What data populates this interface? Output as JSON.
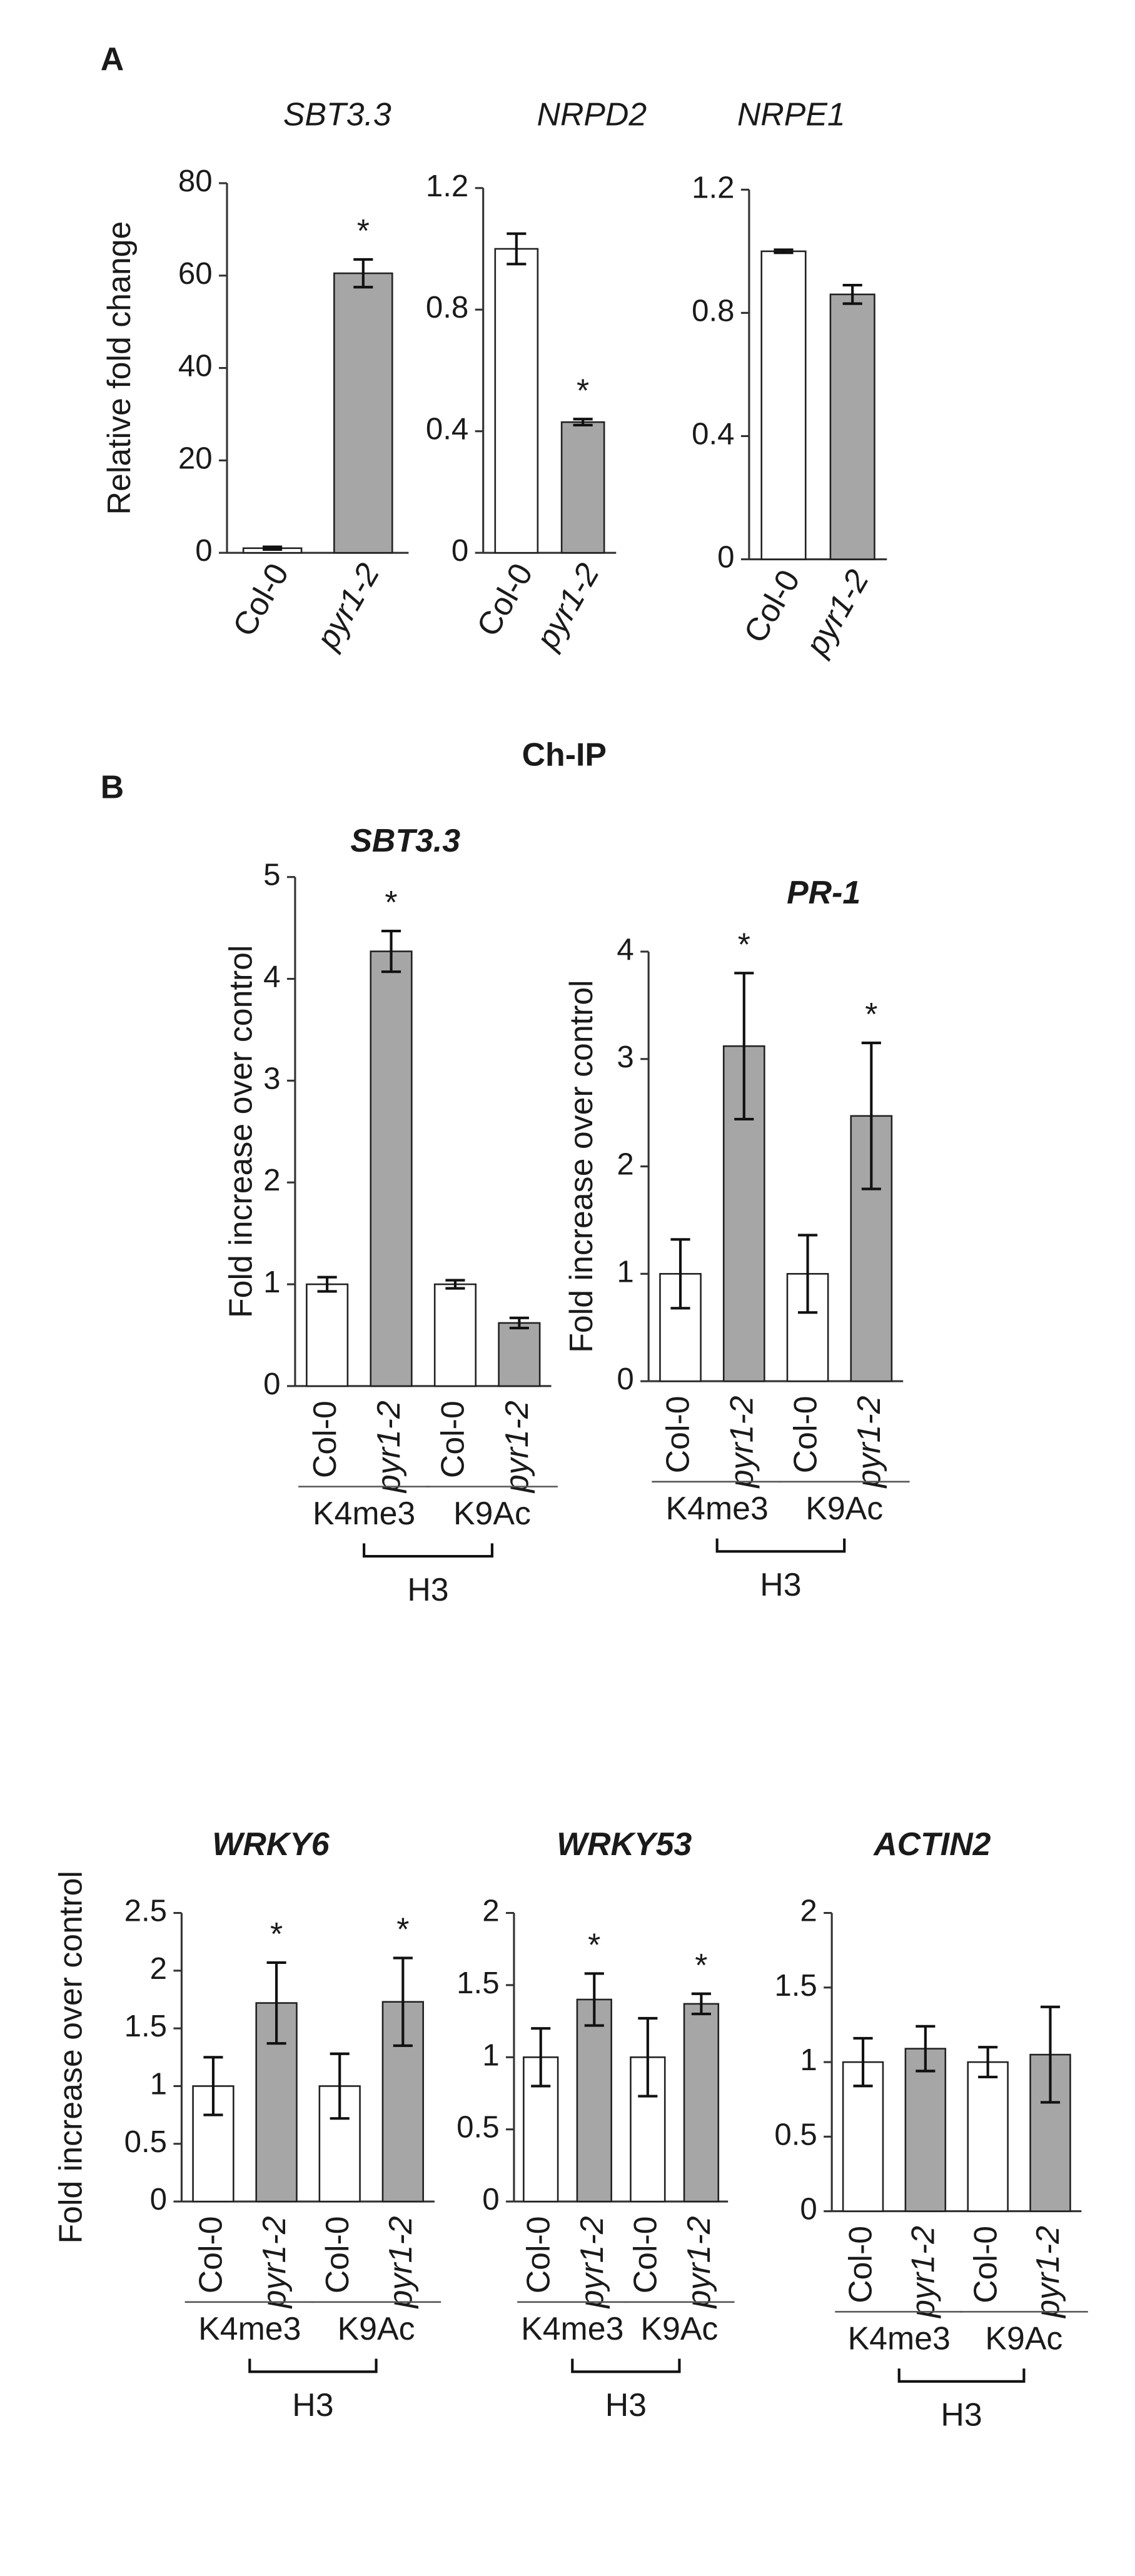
{
  "panel_label_a": "A",
  "panel_label_b": "B",
  "heading": "Ch-IP",
  "chart_data": [
    {
      "type": "bar",
      "title": "SBT3.3",
      "ylabel": "Relative fold change",
      "categories": [
        "Col-0",
        "pyr1-2"
      ],
      "values": [
        1,
        60.5
      ],
      "errors": [
        0.3,
        3
      ],
      "bar_colors": [
        "#ffffff",
        "#a6a6a6"
      ],
      "significance": [
        null,
        "*"
      ],
      "ylim": [
        0,
        80
      ],
      "yticks": [
        0,
        20,
        40,
        60,
        80
      ]
    },
    {
      "type": "bar",
      "title": "NRPD2",
      "categories": [
        "Col-0",
        "pyr1-2"
      ],
      "values": [
        1.0,
        0.43
      ],
      "errors": [
        0.05,
        0.01
      ],
      "bar_colors": [
        "#ffffff",
        "#a6a6a6"
      ],
      "significance": [
        null,
        "*"
      ],
      "ylim": [
        0,
        1.2
      ],
      "yticks": [
        0,
        0.4,
        0.8,
        1.2
      ]
    },
    {
      "type": "bar",
      "title": "NRPE1",
      "categories": [
        "Col-0",
        "pyr1-2"
      ],
      "values": [
        1.0,
        0.86
      ],
      "errors": [
        0.005,
        0.03
      ],
      "bar_colors": [
        "#ffffff",
        "#a6a6a6"
      ],
      "significance": [
        null,
        null
      ],
      "ylim": [
        0,
        1.2
      ],
      "yticks": [
        0,
        0.4,
        0.8,
        1.2
      ]
    },
    {
      "type": "bar",
      "title": "SBT3.3",
      "ylabel": "Fold increase over control",
      "categories": [
        "Col-0",
        "pyr1-2",
        "Col-0",
        "pyr1-2"
      ],
      "values": [
        1,
        4.27,
        1,
        0.62
      ],
      "errors": [
        0.07,
        0.2,
        0.04,
        0.05
      ],
      "bar_colors": [
        "#ffffff",
        "#a6a6a6",
        "#ffffff",
        "#a6a6a6"
      ],
      "significance": [
        null,
        "*",
        null,
        null
      ],
      "groups": [
        "K4me3",
        "K9Ac"
      ],
      "group_bracket": "H3",
      "ylim": [
        0,
        5
      ],
      "yticks": [
        0,
        1,
        2,
        3,
        4,
        5
      ]
    },
    {
      "type": "bar",
      "title": "PR-1",
      "ylabel": "Fold increase over control",
      "categories": [
        "Col-0",
        "pyr1-2",
        "Col-0",
        "pyr1-2"
      ],
      "values": [
        1,
        3.12,
        1,
        2.47
      ],
      "errors": [
        0.32,
        0.68,
        0.36,
        0.68
      ],
      "bar_colors": [
        "#ffffff",
        "#a6a6a6",
        "#ffffff",
        "#a6a6a6"
      ],
      "significance": [
        null,
        "*",
        null,
        "*"
      ],
      "groups": [
        "K4me3",
        "K9Ac"
      ],
      "group_bracket": "H3",
      "ylim": [
        0,
        4
      ],
      "yticks": [
        0,
        1,
        2,
        3,
        4
      ]
    },
    {
      "type": "bar",
      "title": "WRKY6",
      "ylabel": "Fold increase over control",
      "categories": [
        "Col-0",
        "pyr1-2",
        "Col-0",
        "pyr1-2"
      ],
      "values": [
        1,
        1.72,
        1,
        1.73
      ],
      "errors": [
        0.25,
        0.35,
        0.28,
        0.38
      ],
      "bar_colors": [
        "#ffffff",
        "#a6a6a6",
        "#ffffff",
        "#a6a6a6"
      ],
      "significance": [
        null,
        "*",
        null,
        "*"
      ],
      "groups": [
        "K4me3",
        "K9Ac"
      ],
      "group_bracket": "H3",
      "ylim": [
        0,
        2.5
      ],
      "yticks": [
        0,
        0.5,
        1,
        1.5,
        2,
        2.5
      ]
    },
    {
      "type": "bar",
      "title": "WRKY53",
      "categories": [
        "Col-0",
        "pyr1-2",
        "Col-0",
        "pyr1-2"
      ],
      "values": [
        1,
        1.4,
        1,
        1.37
      ],
      "errors": [
        0.2,
        0.18,
        0.27,
        0.07
      ],
      "bar_colors": [
        "#ffffff",
        "#a6a6a6",
        "#ffffff",
        "#a6a6a6"
      ],
      "significance": [
        null,
        "*",
        null,
        "*"
      ],
      "groups": [
        "K4me3",
        "K9Ac"
      ],
      "group_bracket": "H3",
      "ylim": [
        0,
        2
      ],
      "yticks": [
        0,
        0.5,
        1,
        1.5,
        2
      ]
    },
    {
      "type": "bar",
      "title": "ACTIN2",
      "categories": [
        "Col-0",
        "pyr1-2",
        "Col-0",
        "pyr1-2"
      ],
      "values": [
        1,
        1.09,
        1,
        1.05
      ],
      "errors": [
        0.16,
        0.15,
        0.1,
        0.32
      ],
      "bar_colors": [
        "#ffffff",
        "#a6a6a6",
        "#ffffff",
        "#a6a6a6"
      ],
      "significance": [
        null,
        null,
        null,
        null
      ],
      "groups": [
        "K4me3",
        "K9Ac"
      ],
      "group_bracket": "H3",
      "ylim": [
        0,
        2
      ],
      "yticks": [
        0,
        0.5,
        1,
        1.5,
        2
      ]
    }
  ]
}
